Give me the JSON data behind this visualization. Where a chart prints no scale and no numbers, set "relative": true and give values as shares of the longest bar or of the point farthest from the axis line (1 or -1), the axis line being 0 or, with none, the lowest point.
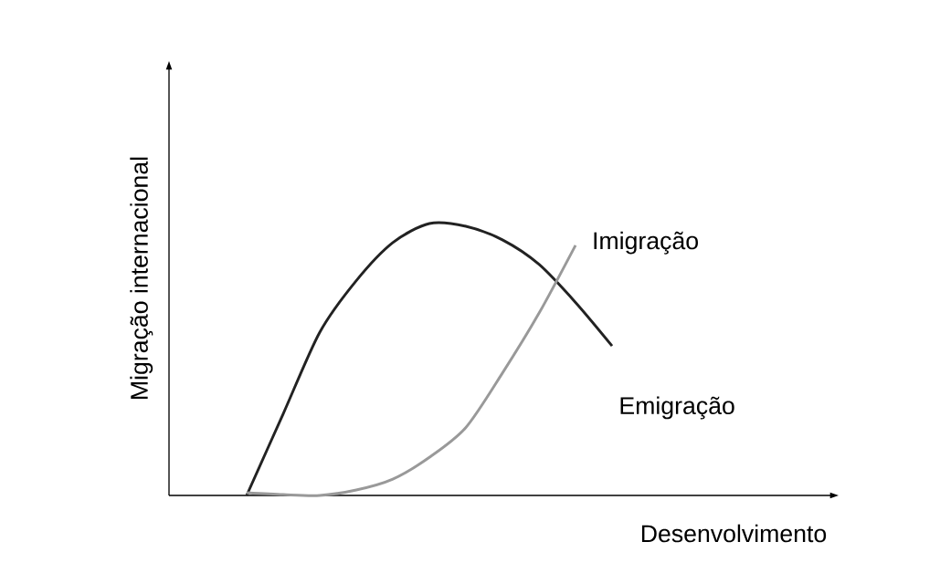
{
  "chart_data": {
    "type": "line",
    "relative": true,
    "xlabel": "Desenvolvimento",
    "ylabel": "Migração internacional",
    "legend": false,
    "marker": "none",
    "line_style": "solid",
    "categories": [
      null,
      null,
      null,
      null,
      null,
      null,
      null,
      null,
      null,
      null,
      null,
      null,
      null,
      null,
      null,
      null,
      null,
      null,
      null
    ],
    "series": [
      {
        "name": "Emigração",
        "color": "#222222",
        "values": [
          null,
          null,
          0,
          0.3,
          0.6,
          0.79,
          0.93,
          1.0,
          0.99,
          0.94,
          0.85,
          0.71,
          0.55,
          null,
          null,
          null,
          null,
          null,
          null
        ]
      },
      {
        "name": "Imigração",
        "color": "#999999",
        "values": [
          null,
          null,
          0.01,
          0.003,
          0,
          0.02,
          0.06,
          0.14,
          0.25,
          0.45,
          0.67,
          0.92,
          null,
          null,
          null,
          null,
          null,
          null,
          null
        ]
      }
    ]
  }
}
